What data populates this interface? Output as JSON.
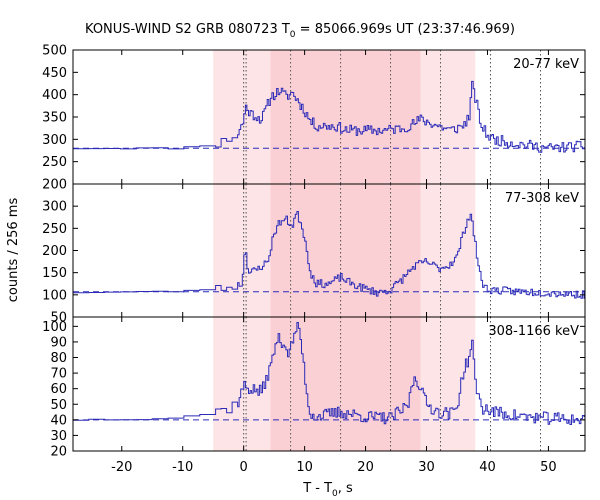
{
  "chart_data": {
    "type": "line",
    "title_main": "KONUS-WIND S2 GRB 080723 T",
    "title_sub": "0",
    "title_rest": " = 85066.969s UT (23:37:46.969)",
    "xlabel_main": "T - T",
    "xlabel_sub": "0",
    "xlabel_rest": ", s",
    "ylabel": "counts / 256 ms",
    "xlim": [
      -28,
      56
    ],
    "x_ticks": [
      -20,
      -10,
      0,
      10,
      20,
      30,
      40,
      50
    ],
    "x_tick_labels": [
      "-20",
      "-10",
      "0",
      "10",
      "20",
      "30",
      "40",
      "50"
    ],
    "colors": {
      "series": "#2b2bb8",
      "background_line": "#2b2bb8",
      "shade_light": "#fde4e6",
      "shade_dark": "#fbd0d5",
      "vline": "#555555"
    },
    "shaded_regions": [
      {
        "start": -5,
        "end": 38,
        "shade": "light"
      },
      {
        "start": 4.4,
        "end": 29,
        "shade": "dark"
      }
    ],
    "dotted_vlines": [
      0,
      0.4,
      7.7,
      15.9,
      24.1,
      32.3,
      40.5,
      48.7
    ],
    "panels": [
      {
        "name": "20-77 keV",
        "ylim": [
          200,
          500
        ],
        "y_ticks": [
          200,
          250,
          300,
          350,
          400,
          450,
          500
        ],
        "y_tick_labels": [
          "200",
          "250",
          "300",
          "350",
          "400",
          "450",
          "500"
        ],
        "background": 280,
        "knots": [
          [
            -28,
            280
          ],
          [
            -10,
            280
          ],
          [
            -4,
            290
          ],
          [
            -1,
            310
          ],
          [
            0,
            340
          ],
          [
            0.3,
            375
          ],
          [
            1,
            360
          ],
          [
            3,
            345
          ],
          [
            4.5,
            395
          ],
          [
            6,
            410
          ],
          [
            7,
            395
          ],
          [
            8,
            405
          ],
          [
            9,
            385
          ],
          [
            10,
            365
          ],
          [
            11,
            340
          ],
          [
            12,
            330
          ],
          [
            15,
            330
          ],
          [
            17,
            320
          ],
          [
            20,
            320
          ],
          [
            23,
            320
          ],
          [
            26,
            325
          ],
          [
            28,
            335
          ],
          [
            29,
            345
          ],
          [
            30,
            340
          ],
          [
            32,
            330
          ],
          [
            34,
            320
          ],
          [
            36,
            330
          ],
          [
            37,
            350
          ],
          [
            37.5,
            420
          ],
          [
            38,
            395
          ],
          [
            39,
            330
          ],
          [
            40,
            310
          ],
          [
            41,
            300
          ],
          [
            45,
            290
          ],
          [
            50,
            280
          ],
          [
            56,
            285
          ]
        ],
        "noise": 12,
        "seed": 11
      },
      {
        "name": "77-308 keV",
        "ylim": [
          50,
          350
        ],
        "y_ticks": [
          50,
          100,
          150,
          200,
          250,
          300
        ],
        "y_tick_labels": [
          "50",
          "100",
          "150",
          "200",
          "250",
          "300"
        ],
        "background": 107,
        "knots": [
          [
            -28,
            105
          ],
          [
            -10,
            108
          ],
          [
            -3,
            115
          ],
          [
            -0.2,
            125
          ],
          [
            0,
            180
          ],
          [
            0.4,
            200
          ],
          [
            0.8,
            150
          ],
          [
            2,
            155
          ],
          [
            4,
            175
          ],
          [
            5,
            240
          ],
          [
            6,
            265
          ],
          [
            7,
            270
          ],
          [
            8,
            255
          ],
          [
            8.7,
            285
          ],
          [
            9.5,
            260
          ],
          [
            10,
            230
          ],
          [
            11,
            150
          ],
          [
            12,
            125
          ],
          [
            14,
            125
          ],
          [
            16,
            140
          ],
          [
            17,
            130
          ],
          [
            19,
            118
          ],
          [
            22,
            105
          ],
          [
            24,
            110
          ],
          [
            26,
            135
          ],
          [
            28,
            165
          ],
          [
            30,
            175
          ],
          [
            32,
            160
          ],
          [
            33.5,
            165
          ],
          [
            35,
            185
          ],
          [
            36.5,
            260
          ],
          [
            37.3,
            285
          ],
          [
            38,
            215
          ],
          [
            39,
            130
          ],
          [
            40,
            112
          ],
          [
            44,
            108
          ],
          [
            50,
            105
          ],
          [
            56,
            100
          ]
        ],
        "noise": 9,
        "seed": 23
      },
      {
        "name": "308-1166 keV",
        "ylim": [
          20,
          106
        ],
        "y_ticks": [
          20,
          30,
          40,
          50,
          60,
          70,
          80,
          90,
          100
        ],
        "y_tick_labels": [
          "20",
          "30",
          "40",
          "50",
          "60",
          "70",
          "80",
          "90",
          "100"
        ],
        "background": 40,
        "knots": [
          [
            -28,
            40
          ],
          [
            -12,
            41
          ],
          [
            -5,
            44
          ],
          [
            -1,
            50
          ],
          [
            0,
            62
          ],
          [
            1,
            60
          ],
          [
            3,
            58
          ],
          [
            4.5,
            75
          ],
          [
            5.5,
            92
          ],
          [
            6.5,
            90
          ],
          [
            7.5,
            82
          ],
          [
            8.7,
            100
          ],
          [
            9.3,
            95
          ],
          [
            10,
            70
          ],
          [
            10.8,
            45
          ],
          [
            12,
            42
          ],
          [
            16,
            45
          ],
          [
            20,
            42
          ],
          [
            24,
            41
          ],
          [
            26,
            46
          ],
          [
            27,
            50
          ],
          [
            28,
            68
          ],
          [
            29,
            62
          ],
          [
            30,
            50
          ],
          [
            32,
            45
          ],
          [
            34,
            44
          ],
          [
            35,
            48
          ],
          [
            36,
            70
          ],
          [
            37,
            80
          ],
          [
            37.5,
            90
          ],
          [
            38,
            65
          ],
          [
            39,
            48
          ],
          [
            41,
            45
          ],
          [
            46,
            42
          ],
          [
            50,
            41
          ],
          [
            56,
            40
          ]
        ],
        "noise": 4,
        "seed": 37
      }
    ]
  }
}
